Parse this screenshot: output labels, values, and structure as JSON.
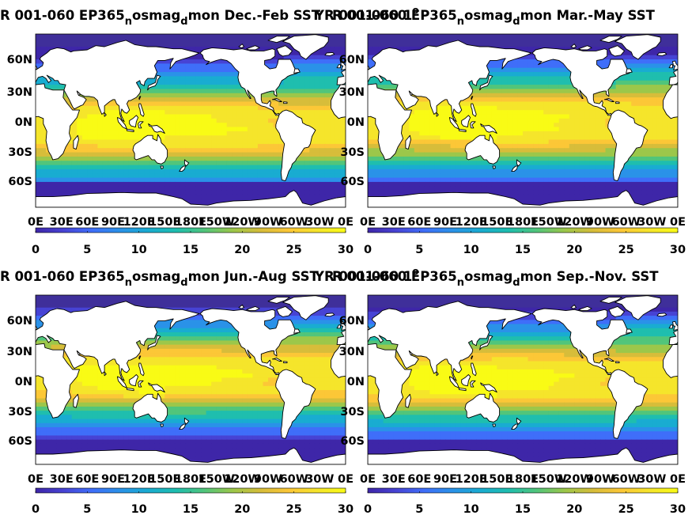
{
  "colors": {
    "land": "#ffffff",
    "coast": "#000000",
    "ice_edge": "#3f2f9a",
    "colormap": [
      "#3e26a8",
      "#4743d4",
      "#3f6ef9",
      "#2a92e8",
      "#19acd1",
      "#1fbeae",
      "#51c57b",
      "#9cc74a",
      "#d7bd3a",
      "#fcc737",
      "#f5e52b",
      "#f9fb15"
    ]
  },
  "chart_data": [
    {
      "type": "heatmap",
      "panel": "Dec-Feb",
      "title_parts": [
        "R 001-060 EP365",
        "n",
        "osmag",
        "d",
        "mon Dec.-Feb SST"
      ],
      "overlap_parts": [
        "YR 001-060 1",
        "o",
        ""
      ],
      "lon_ticks": [
        "0E",
        "30E",
        "60E",
        "90E",
        "120E",
        "150E",
        "180E",
        "150W",
        "120W",
        "90W",
        "60W",
        "30W",
        "0E"
      ],
      "lat_ticks": [
        "60N",
        "30N",
        "0N",
        "30S",
        "60S"
      ],
      "colorbar_ticks": [
        "0",
        "5",
        "10",
        "15",
        "20",
        "25",
        "30"
      ],
      "clim": [
        0,
        30
      ],
      "season": "DJF"
    },
    {
      "type": "heatmap",
      "panel": "Mar-May",
      "title_parts": [
        "R 001-060 EP365",
        "n",
        "osmag",
        "d",
        "mon Mar.-May SST"
      ],
      "overlap_parts": [],
      "lon_ticks": [
        "0E",
        "30E",
        "60E",
        "90E",
        "120E",
        "150E",
        "180E",
        "150W",
        "120W",
        "90W",
        "60W",
        "30W",
        "0E"
      ],
      "lat_ticks": [
        "60N",
        "30N",
        "0N",
        "30S",
        "60S"
      ],
      "colorbar_ticks": [
        "0",
        "5",
        "10",
        "15",
        "20",
        "25",
        "30"
      ],
      "clim": [
        0,
        30
      ],
      "season": "MAM"
    },
    {
      "type": "heatmap",
      "panel": "Jun-Aug",
      "title_parts": [
        "R 001-060 EP365",
        "n",
        "osmag",
        "d",
        "mon Jun.-Aug SST"
      ],
      "overlap_parts": [
        "YR 001-060 1",
        "o",
        ""
      ],
      "lon_ticks": [
        "0E",
        "30E",
        "60E",
        "90E",
        "120E",
        "150E",
        "180E",
        "150W",
        "120W",
        "90W",
        "60W",
        "30W",
        "0E"
      ],
      "lat_ticks": [
        "60N",
        "30N",
        "0N",
        "30S",
        "60S"
      ],
      "colorbar_ticks": [
        "0",
        "5",
        "10",
        "15",
        "20",
        "25",
        "30"
      ],
      "clim": [
        0,
        30
      ],
      "season": "JJA"
    },
    {
      "type": "heatmap",
      "panel": "Sep-Nov",
      "title_parts": [
        "R 001-060 EP365",
        "n",
        "osmag",
        "d",
        "mon Sep.-Nov. SST"
      ],
      "overlap_parts": [],
      "lon_ticks": [
        "0E",
        "30E",
        "60E",
        "90E",
        "120E",
        "150E",
        "180E",
        "150W",
        "120W",
        "90W",
        "60W",
        "30W",
        "0E"
      ],
      "lat_ticks": [
        "60N",
        "30N",
        "0N",
        "30S",
        "60S"
      ],
      "colorbar_ticks": [
        "0",
        "5",
        "10",
        "15",
        "20",
        "25",
        "30"
      ],
      "clim": [
        0,
        30
      ],
      "season": "SON"
    }
  ]
}
